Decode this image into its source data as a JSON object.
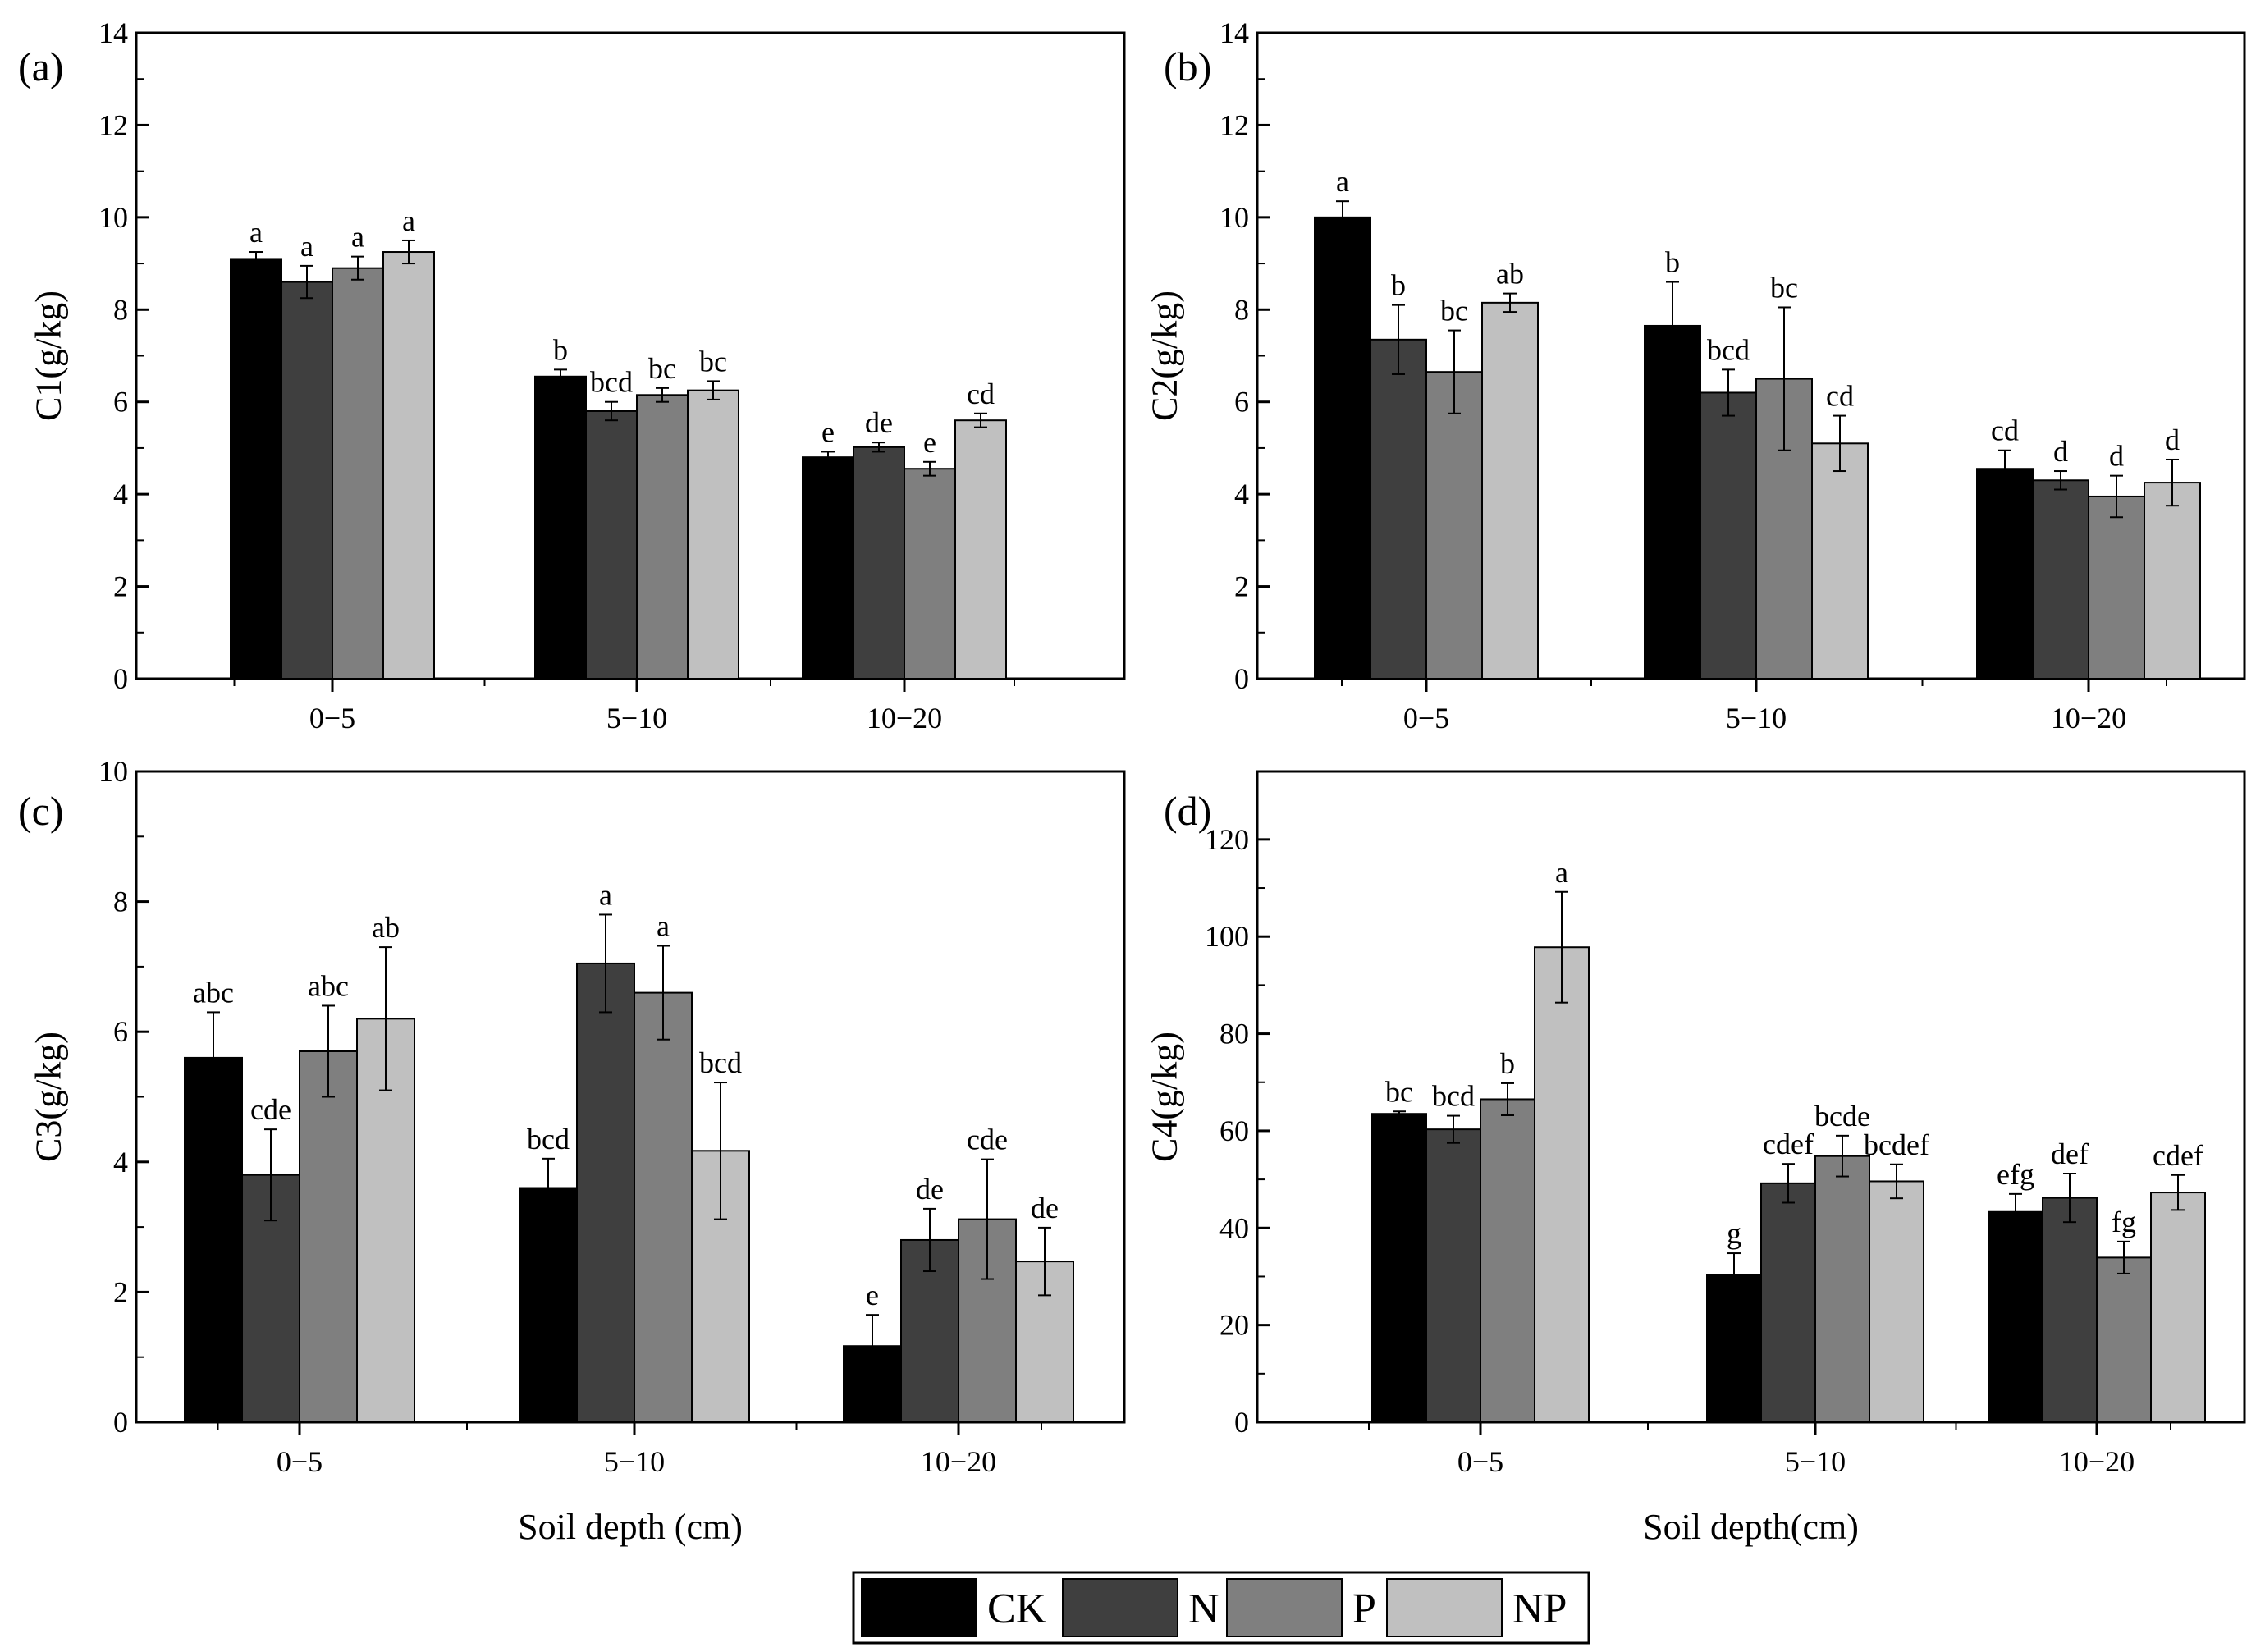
{
  "colors": {
    "CK": "#000000",
    "N": "#3f3f3f",
    "P": "#7f7f7f",
    "NP": "#c0c0c0"
  },
  "legend": [
    "CK",
    "N",
    "P",
    "NP"
  ],
  "chart_data": [
    {
      "type": "bar",
      "panel_label": "(a)",
      "ylabel": "C1(g/kg)",
      "xlabel": "",
      "ylim": [
        0,
        14
      ],
      "yticks": [
        0,
        2,
        4,
        6,
        8,
        10,
        12,
        14
      ],
      "categories": [
        "0−5",
        "5−10",
        "10−20"
      ],
      "series": [
        {
          "name": "CK",
          "values": [
            9.1,
            6.55,
            4.8
          ],
          "errors": [
            0.15,
            0.15,
            0.12
          ],
          "letters": [
            "a",
            "b",
            "e"
          ]
        },
        {
          "name": "N",
          "values": [
            8.6,
            5.8,
            5.02
          ],
          "errors": [
            0.35,
            0.2,
            0.1
          ],
          "letters": [
            "a",
            "bcd",
            "de"
          ]
        },
        {
          "name": "P",
          "values": [
            8.9,
            6.15,
            4.55
          ],
          "errors": [
            0.25,
            0.15,
            0.15
          ],
          "letters": [
            "a",
            "bc",
            "e"
          ]
        },
        {
          "name": "NP",
          "values": [
            9.25,
            6.25,
            5.6
          ],
          "errors": [
            0.25,
            0.2,
            0.15
          ],
          "letters": [
            "a",
            "bc",
            "cd"
          ]
        }
      ]
    },
    {
      "type": "bar",
      "panel_label": "(b)",
      "ylabel": "C2(g/kg)",
      "xlabel": "",
      "ylim": [
        0,
        14
      ],
      "yticks": [
        0,
        2,
        4,
        6,
        8,
        10,
        12,
        14
      ],
      "categories": [
        "0−5",
        "5−10",
        "10−20"
      ],
      "series": [
        {
          "name": "CK",
          "values": [
            10.0,
            7.65,
            4.55
          ],
          "errors": [
            0.35,
            0.95,
            0.4
          ],
          "letters": [
            "a",
            "b",
            "cd"
          ]
        },
        {
          "name": "N",
          "values": [
            7.35,
            6.2,
            4.3
          ],
          "errors": [
            0.75,
            0.5,
            0.2
          ],
          "letters": [
            "b",
            "bcd",
            "d"
          ]
        },
        {
          "name": "P",
          "values": [
            6.65,
            6.5,
            3.95
          ],
          "errors": [
            0.9,
            1.55,
            0.45
          ],
          "letters": [
            "bc",
            "bc",
            "d"
          ]
        },
        {
          "name": "NP",
          "values": [
            8.15,
            5.1,
            4.25
          ],
          "errors": [
            0.2,
            0.6,
            0.5
          ],
          "letters": [
            "ab",
            "cd",
            "d"
          ]
        }
      ]
    },
    {
      "type": "bar",
      "panel_label": "(c)",
      "ylabel": "C3(g/kg)",
      "xlabel": "Soil depth (cm)",
      "ylim": [
        0,
        10
      ],
      "yticks": [
        0,
        2,
        4,
        6,
        8,
        10
      ],
      "categories": [
        "0−5",
        "5−10",
        "10−20"
      ],
      "series": [
        {
          "name": "CK",
          "values": [
            5.6,
            3.6,
            1.17
          ],
          "errors": [
            0.7,
            0.45,
            0.48
          ],
          "letters": [
            "abc",
            "bcd",
            "e"
          ]
        },
        {
          "name": "N",
          "values": [
            3.8,
            7.05,
            2.8
          ],
          "errors": [
            0.7,
            0.75,
            0.48
          ],
          "letters": [
            "cde",
            "a",
            "de"
          ]
        },
        {
          "name": "P",
          "values": [
            5.7,
            6.6,
            3.12
          ],
          "errors": [
            0.7,
            0.72,
            0.92
          ],
          "letters": [
            "abc",
            "a",
            "cde"
          ]
        },
        {
          "name": "NP",
          "values": [
            6.2,
            4.17,
            2.47
          ],
          "errors": [
            1.1,
            1.05,
            0.52
          ],
          "letters": [
            "ab",
            "bcd",
            "de"
          ]
        }
      ]
    },
    {
      "type": "bar",
      "panel_label": "(d)",
      "ylabel": "C4(g/kg)",
      "xlabel": "Soil depth(cm)",
      "ylim": [
        0,
        134
      ],
      "yticks": [
        0,
        20,
        40,
        60,
        80,
        100,
        120
      ],
      "categories": [
        "0−5",
        "5−10",
        "10−20"
      ],
      "series": [
        {
          "name": "CK",
          "values": [
            63.5,
            30.3,
            43.3
          ],
          "errors": [
            0.5,
            4.5,
            3.7
          ],
          "letters": [
            "bc",
            "g",
            "efg"
          ]
        },
        {
          "name": "N",
          "values": [
            60.3,
            49.2,
            46.2
          ],
          "errors": [
            2.8,
            4.0,
            5.0
          ],
          "letters": [
            "bcd",
            "cdef",
            "def"
          ]
        },
        {
          "name": "P",
          "values": [
            66.5,
            54.8,
            33.9
          ],
          "errors": [
            3.3,
            4.2,
            3.3
          ],
          "letters": [
            "b",
            "bcde",
            "fg"
          ]
        },
        {
          "name": "NP",
          "values": [
            97.8,
            49.6,
            47.3
          ],
          "errors": [
            11.4,
            3.5,
            3.6
          ],
          "letters": [
            "a",
            "bcdef",
            "cdef"
          ]
        }
      ]
    }
  ]
}
